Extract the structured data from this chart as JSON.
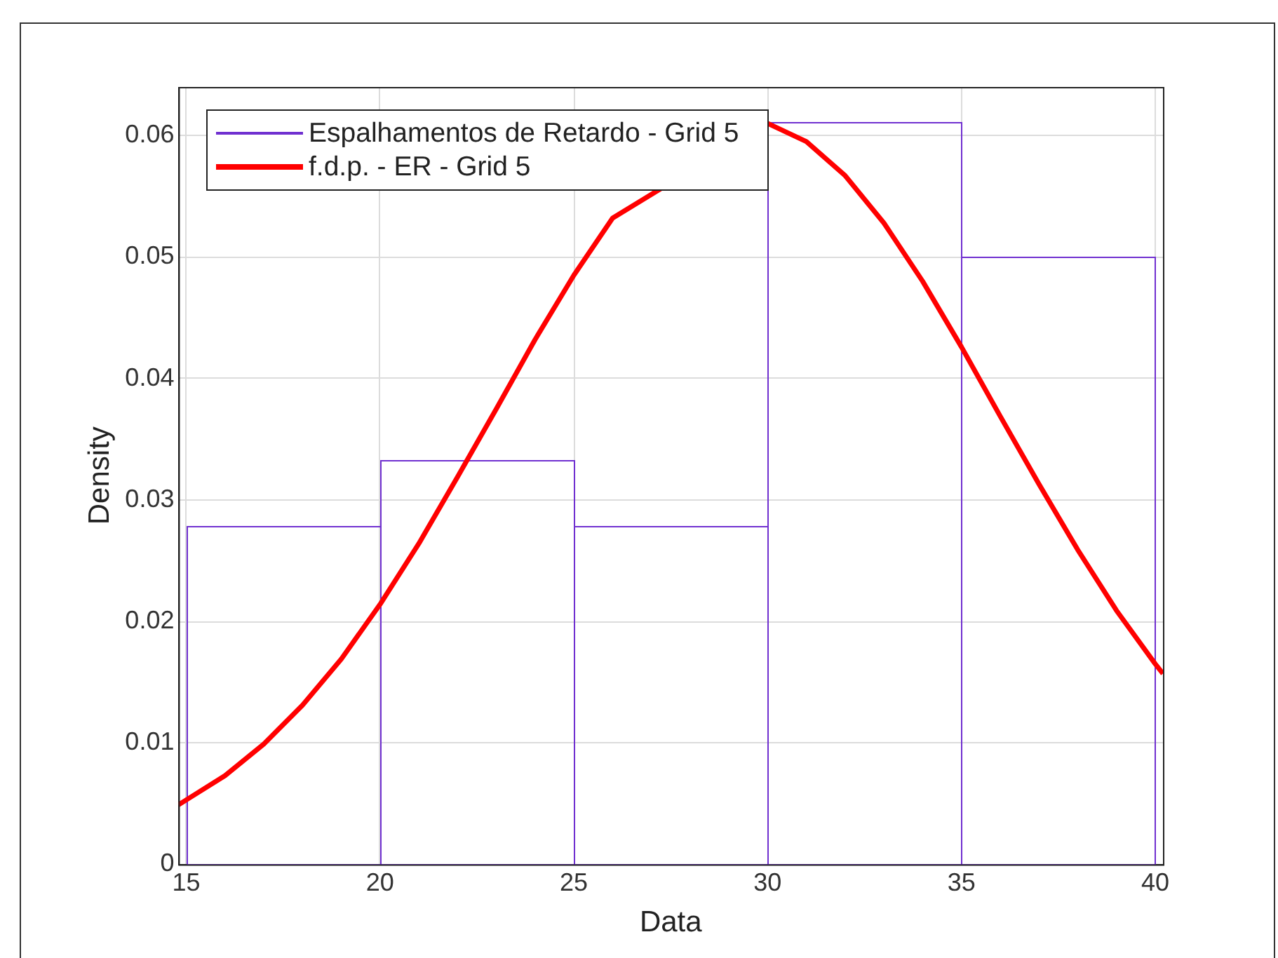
{
  "chart_data": {
    "type": "histogram",
    "xlabel": "Data",
    "ylabel": "Density",
    "bins": [
      15,
      20,
      25,
      30,
      35,
      40
    ],
    "series": [
      {
        "name": "Espalhamentos de Retardo - Grid 5",
        "color": "#7030d0",
        "values": [
          0.0278,
          0.0333,
          0.0278,
          0.0611,
          0.05
        ]
      },
      {
        "type": "line",
        "name": "f.d.p. - ER - Grid 5",
        "color": "#ff0000",
        "x": [
          14.8,
          15,
          16,
          17,
          18,
          19,
          20,
          21,
          22,
          23,
          24,
          25,
          26,
          27,
          28,
          29,
          30,
          31,
          32,
          33,
          34,
          35,
          36,
          37,
          38,
          39,
          40,
          40.2
        ],
        "values": [
          0.0049,
          0.0053,
          0.0073,
          0.0099,
          0.0131,
          0.0169,
          0.0214,
          0.0264,
          0.0319,
          0.0375,
          0.0432,
          0.0485,
          0.0532,
          null,
          null,
          null,
          0.061,
          0.0595,
          0.0567,
          0.0528,
          0.048,
          0.0426,
          0.0369,
          0.0313,
          0.0259,
          0.0209,
          0.0165,
          0.0157
        ]
      }
    ],
    "xlim": [
      14.8,
      40.2
    ],
    "xticks": [
      15,
      20,
      25,
      30,
      35,
      40
    ],
    "ylim": [
      0,
      0.064
    ],
    "yticks": [
      0,
      0.01,
      0.02,
      0.03,
      0.04,
      0.05,
      0.06
    ],
    "grid": true,
    "legend": "top left"
  }
}
